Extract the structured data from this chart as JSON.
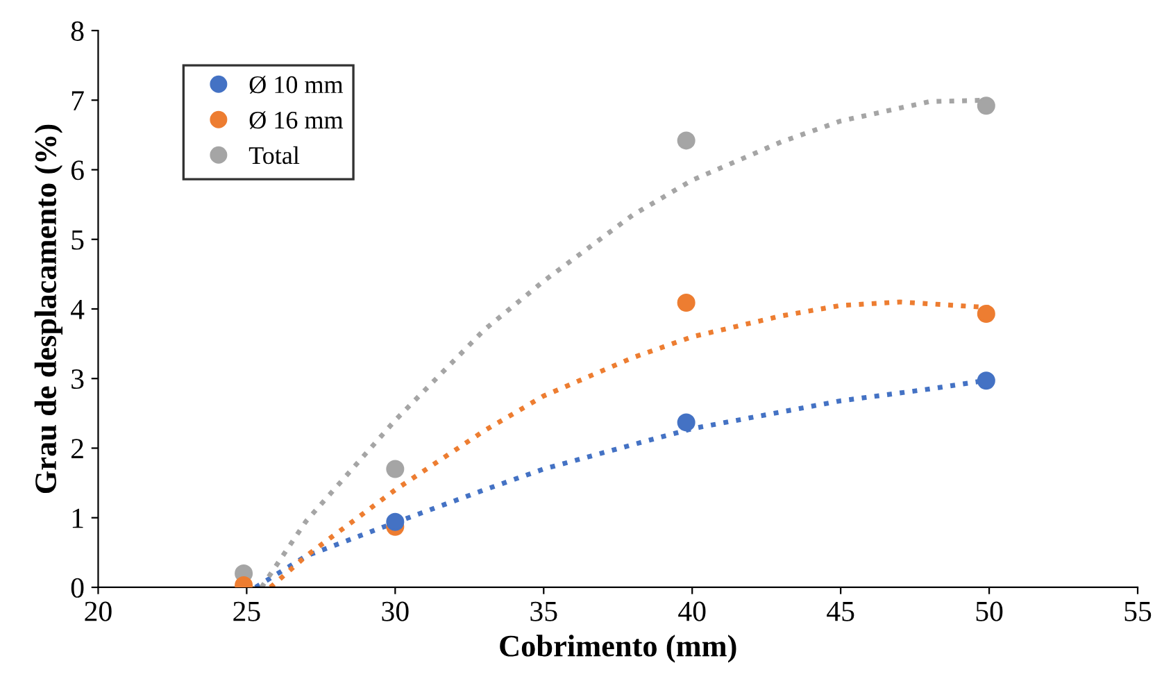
{
  "chart_data": {
    "type": "scatter",
    "xlabel": "Cobrimento (mm)",
    "ylabel": "Grau de desplacamento (%)",
    "xlim": [
      20,
      55
    ],
    "ylim": [
      0,
      8
    ],
    "xticks": [
      20,
      25,
      30,
      35,
      40,
      45,
      50,
      55
    ],
    "yticks": [
      0,
      1,
      2,
      3,
      4,
      5,
      6,
      7,
      8
    ],
    "grid": false,
    "legend": "top left",
    "marker": "circle",
    "series": [
      {
        "name": "Ø 10 mm",
        "color": "#4472c4",
        "x": [
          30,
          39.8,
          49.9
        ],
        "values": [
          0.94,
          2.37,
          2.97
        ]
      },
      {
        "name": "Ø 16 mm",
        "color": "#ed7d31",
        "x": [
          24.9,
          30,
          39.8,
          49.9
        ],
        "values": [
          0.03,
          0.87,
          4.09,
          3.93
        ]
      },
      {
        "name": "Total",
        "color": "#a5a5a5",
        "x": [
          24.9,
          30,
          39.8,
          49.9
        ],
        "values": [
          0.2,
          1.7,
          6.42,
          6.92
        ]
      },
      {
        "type": "line",
        "line_style": "dotted",
        "marker": "none",
        "color": "#4472c4",
        "x": [
          25.3,
          27,
          30,
          33,
          35,
          38,
          40,
          43,
          45,
          48,
          50
        ],
        "values": [
          0,
          0.45,
          0.93,
          1.4,
          1.7,
          2.05,
          2.28,
          2.52,
          2.68,
          2.85,
          2.98
        ]
      },
      {
        "type": "line",
        "line_style": "dotted",
        "marker": "none",
        "color": "#ed7d31",
        "x": [
          25.8,
          27,
          30,
          33,
          35,
          38,
          40,
          43,
          45,
          47,
          50
        ],
        "values": [
          0,
          0.45,
          1.4,
          2.25,
          2.75,
          3.3,
          3.6,
          3.9,
          4.05,
          4.1,
          4.02
        ]
      },
      {
        "type": "line",
        "line_style": "dotted",
        "marker": "none",
        "color": "#a5a5a5",
        "x": [
          25.5,
          27,
          30,
          33,
          35,
          38,
          40,
          43,
          45,
          48,
          50
        ],
        "values": [
          0,
          0.95,
          2.4,
          3.7,
          4.4,
          5.35,
          5.85,
          6.4,
          6.7,
          6.98,
          7.0
        ]
      }
    ]
  }
}
